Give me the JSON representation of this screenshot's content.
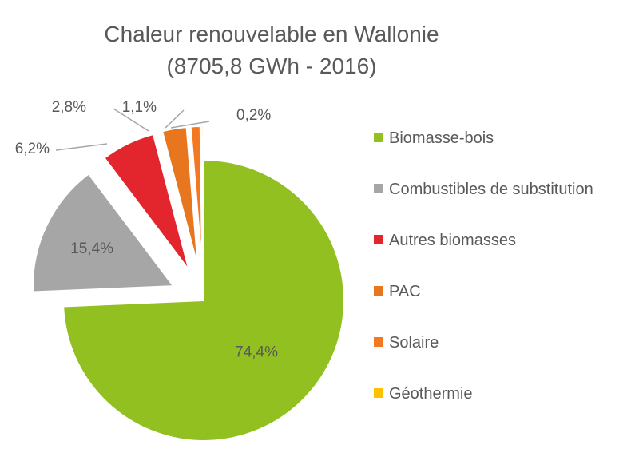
{
  "chart_data": {
    "type": "pie",
    "title": "Chaleur renouvelable en Wallonie",
    "subtitle": "(8705,8 GWh - 2016)",
    "legend_position": "right",
    "slices": [
      {
        "name": "Biomasse-bois",
        "value": 74.4,
        "label": "74,4%",
        "color": "#92c020",
        "exploded": false,
        "label_outside": false
      },
      {
        "name": "Combustibles de substitution",
        "value": 15.4,
        "label": "15,4%",
        "color": "#a6a6a6",
        "exploded": true,
        "label_outside": false
      },
      {
        "name": "Autres biomasses",
        "value": 6.2,
        "label": "6,2%",
        "color": "#e3262d",
        "exploded": true,
        "label_outside": true
      },
      {
        "name": "PAC",
        "value": 2.8,
        "label": "2,8%",
        "color": "#e8761e",
        "exploded": true,
        "label_outside": true
      },
      {
        "name": "Solaire",
        "value": 1.1,
        "label": "1,1%",
        "color": "#f3781f",
        "exploded": true,
        "label_outside": true
      },
      {
        "name": "Géothermie",
        "value": 0.2,
        "label": "0,2%",
        "color": "#ffc000",
        "exploded": true,
        "label_outside": true
      }
    ]
  }
}
